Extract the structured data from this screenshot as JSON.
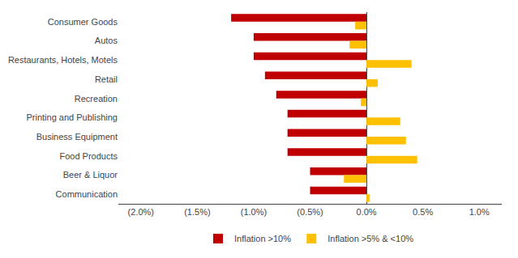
{
  "chart_data": {
    "type": "bar",
    "orientation": "horizontal",
    "categories": [
      "Consumer Goods",
      "Autos",
      "Restaurants, Hotels, Motels",
      "Retail",
      "Recreation",
      "Printing and Publishing",
      "Business Equipment",
      "Food Products",
      "Beer & Liquor",
      "Communication"
    ],
    "series": [
      {
        "name": "Inflation >10%",
        "color": "#C00000",
        "values": [
          -0.012,
          -0.01,
          -0.01,
          -0.009,
          -0.008,
          -0.007,
          -0.007,
          -0.007,
          -0.005,
          -0.005
        ]
      },
      {
        "name": "Inflation >5% & <10%",
        "color": "#FFC000",
        "values": [
          -0.001,
          -0.0015,
          0.004,
          0.001,
          -0.0005,
          0.003,
          0.0035,
          0.0045,
          -0.002,
          0.0003
        ]
      }
    ],
    "xlim": [
      -0.022,
      0.012
    ],
    "xticks": [
      {
        "value": -0.02,
        "label": "(2.0%)"
      },
      {
        "value": -0.015,
        "label": "(1.5%)"
      },
      {
        "value": -0.01,
        "label": "(1.0%)"
      },
      {
        "value": -0.005,
        "label": "(0.5%)"
      },
      {
        "value": 0.0,
        "label": "0.0%"
      },
      {
        "value": 0.005,
        "label": "0.5%"
      },
      {
        "value": 0.01,
        "label": "1.0%"
      }
    ],
    "grid": false,
    "legend": "bottom"
  }
}
